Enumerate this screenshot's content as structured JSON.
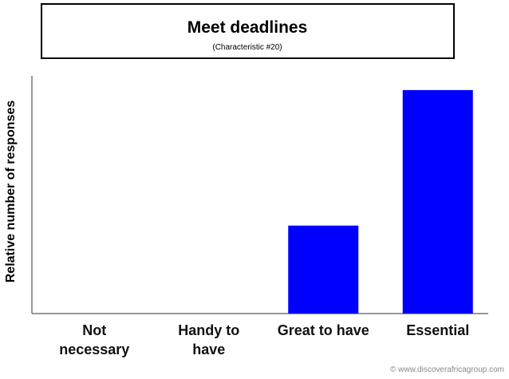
{
  "chart_data": {
    "type": "bar",
    "title": "Meet deadlines",
    "subtitle": "(Characteristic #20)",
    "y_label": "Relative number of responses",
    "categories": [
      "Not necessary",
      "Handy to have",
      "Great to have",
      "Essential"
    ],
    "values": [
      0,
      0,
      37,
      94
    ],
    "color": "#0000ff",
    "ylim": [
      0,
      100
    ],
    "grid": false,
    "footer": "© www.discoverafricagroup.com"
  }
}
